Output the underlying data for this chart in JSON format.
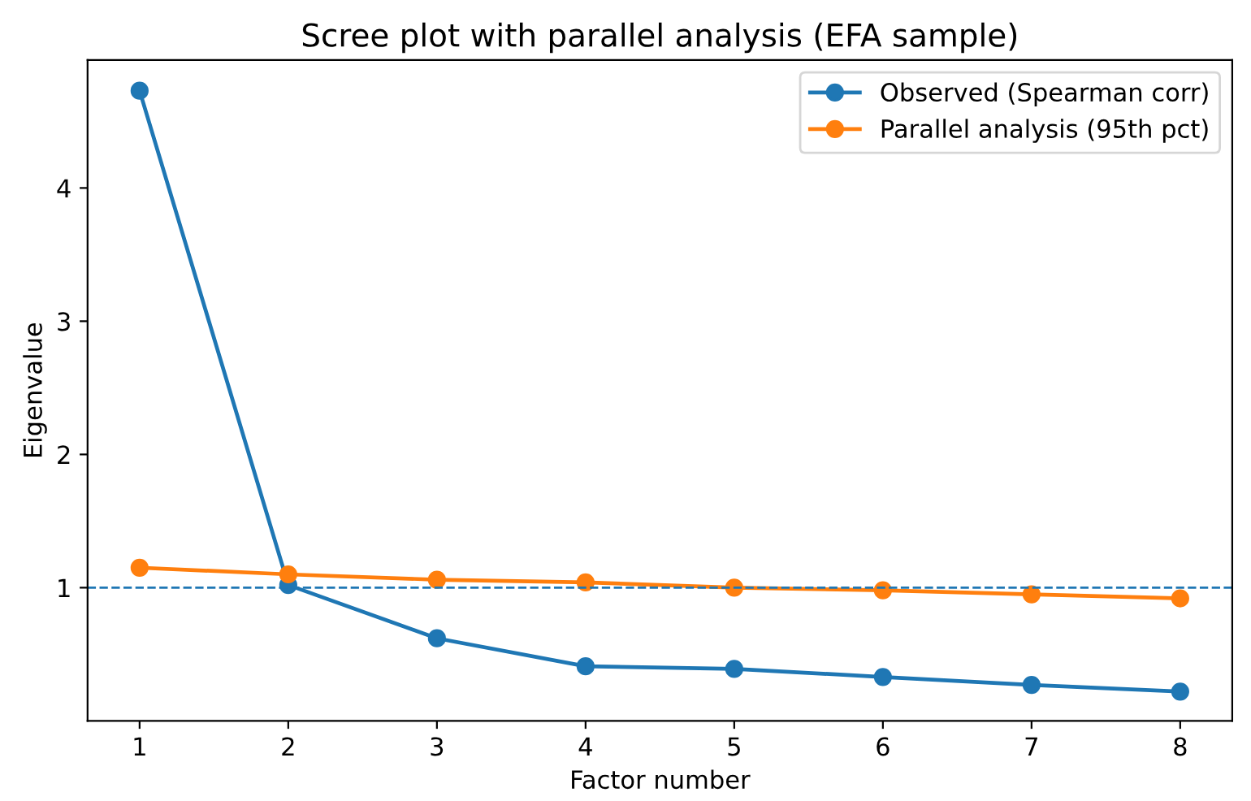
{
  "chart_data": {
    "type": "line",
    "title": "Scree plot with parallel analysis (EFA sample)",
    "xlabel": "Factor number",
    "ylabel": "Eigenvalue",
    "x": [
      1,
      2,
      3,
      4,
      5,
      6,
      7,
      8
    ],
    "series": [
      {
        "name": "Observed (Spearman corr)",
        "color": "#1f77b4",
        "values": [
          4.73,
          1.02,
          0.62,
          0.41,
          0.39,
          0.33,
          0.27,
          0.22
        ]
      },
      {
        "name": "Parallel analysis (95th pct)",
        "color": "#ff7f0e",
        "values": [
          1.15,
          1.1,
          1.06,
          1.04,
          1.0,
          0.98,
          0.95,
          0.92
        ]
      }
    ],
    "xlim": [
      0.65,
      8.35
    ],
    "xticks": [
      1,
      2,
      3,
      4,
      5,
      6,
      7,
      8
    ],
    "ylim": [
      0,
      4.96
    ],
    "yticks": [
      1,
      2,
      3,
      4
    ],
    "ref_lines": [
      {
        "axis": "y",
        "value": 1,
        "color": "#1f77b4",
        "line_style": "dashed"
      }
    ],
    "marker": "circle",
    "line_style": "solid",
    "legend": "top right",
    "grid": false
  }
}
